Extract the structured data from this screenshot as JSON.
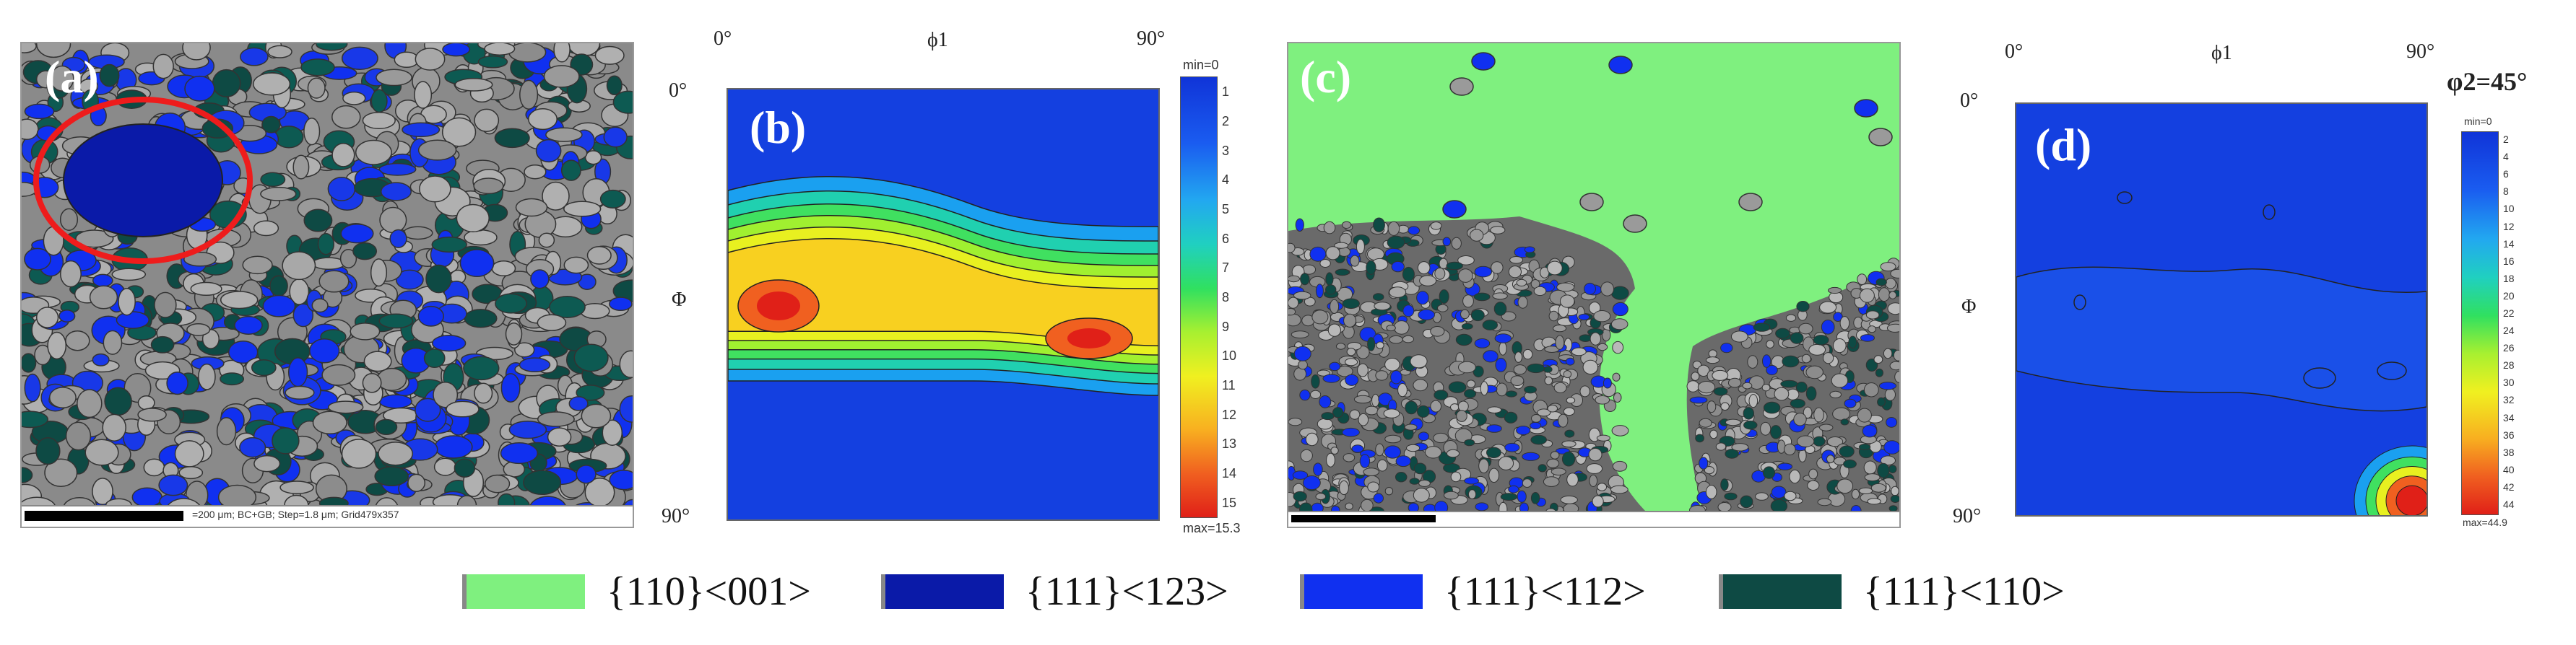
{
  "panels": {
    "a": {
      "label": "(a)",
      "scale_text": "=200 μm; BC+GB; Step=1.8 μm; Grid479x357"
    },
    "b": {
      "label": "(b)",
      "axis_top_left": "0°",
      "axis_top_mid": "ϕ1",
      "axis_top_right": "90°",
      "axis_left_top": "0°",
      "axis_left_mid": "Φ",
      "axis_left_bottom": "90°",
      "scale_min": "min=0",
      "scale_max": "max=15.3",
      "scale_ticks": [
        "1",
        "2",
        "3",
        "4",
        "5",
        "6",
        "7",
        "8",
        "9",
        "10",
        "11",
        "12",
        "13",
        "14",
        "15"
      ]
    },
    "c": {
      "label": "(c)"
    },
    "d": {
      "label": "(d)",
      "axis_top_left": "0°",
      "axis_top_mid": "ϕ1",
      "axis_top_right": "90°",
      "axis_left_top": "0°",
      "axis_left_mid": "Φ",
      "axis_left_bottom": "90°",
      "phi2": "φ2=45°",
      "scale_min": "min=0",
      "scale_max": "max=44.9",
      "scale_ticks": [
        "2",
        "4",
        "6",
        "8",
        "10",
        "12",
        "14",
        "16",
        "18",
        "20",
        "22",
        "24",
        "26",
        "28",
        "30",
        "32",
        "34",
        "36",
        "38",
        "40",
        "42",
        "44"
      ]
    }
  },
  "legend": [
    {
      "text": "{110}<001>",
      "color": "#7ff07f"
    },
    {
      "text": "{111}<123>",
      "color": "#0a1aa8"
    },
    {
      "text": "{111}<112>",
      "color": "#1030f0"
    },
    {
      "text": "{111}<110>",
      "color": "#0e4a44"
    }
  ]
}
